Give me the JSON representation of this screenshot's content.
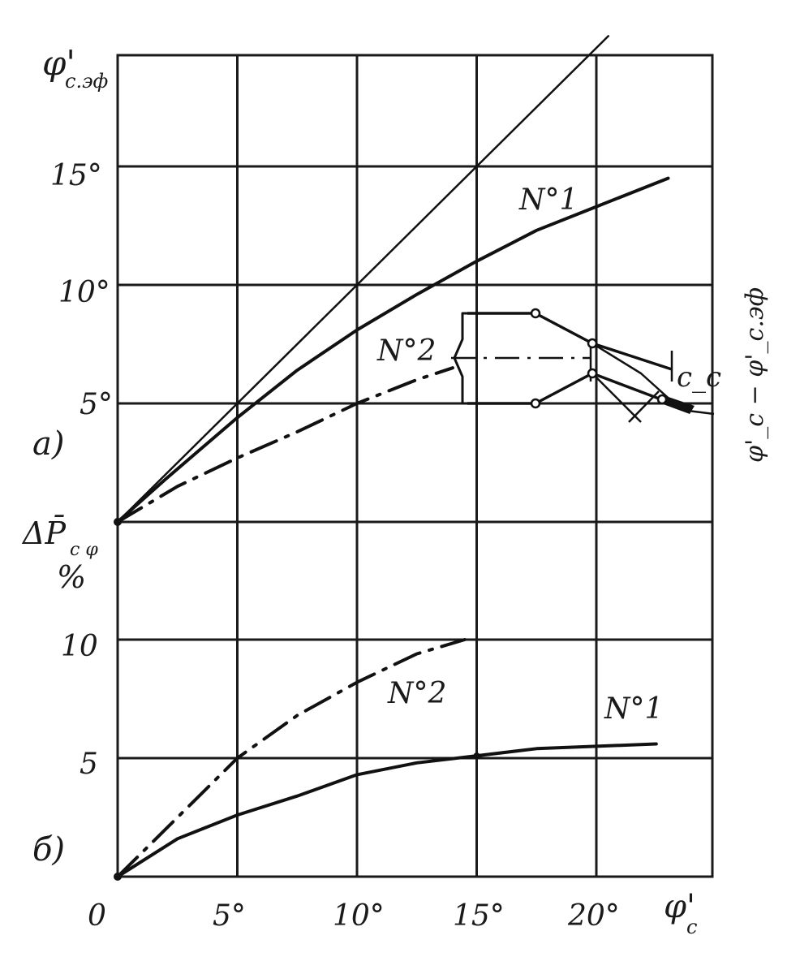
{
  "chart_data": [
    {
      "panel_label": "а)",
      "type": "line",
      "ylabel_main": "φ'",
      "ylabel_sub": "с.эф",
      "y_ticks": [
        "5°",
        "10°",
        "15°"
      ],
      "series": [
        {
          "name": "",
          "style": "thin-solid",
          "x": [
            0,
            20.5
          ],
          "y": [
            0,
            20.5
          ]
        },
        {
          "name": "N°1",
          "style": "thick-solid",
          "x": [
            0,
            2,
            5,
            7.5,
            10,
            12.5,
            15,
            17.5,
            20,
            23
          ],
          "y": [
            0,
            1.8,
            4.4,
            6.4,
            8.1,
            9.6,
            11.0,
            12.3,
            13.3,
            14.5
          ]
        },
        {
          "name": "N°2",
          "style": "dash-dot",
          "x": [
            0,
            2.5,
            5,
            7.5,
            10,
            12.5,
            14
          ],
          "y": [
            0,
            1.5,
            2.7,
            3.8,
            5.0,
            6.0,
            6.5
          ]
        }
      ],
      "inset": {
        "labels": [
          "c_c",
          "φ'_c − φ'_с.эф"
        ]
      }
    },
    {
      "panel_label": "б)",
      "type": "line",
      "ylabel_main": "ΔP̄",
      "ylabel_sub": "с φ",
      "ylabel_unit": "%",
      "y_ticks": [
        "5",
        "10"
      ],
      "x_ticks": [
        "0",
        "5°",
        "10°",
        "15°",
        "20°"
      ],
      "xlabel_main": "φ'",
      "xlabel_sub": "с",
      "series": [
        {
          "name": "N°1",
          "style": "thick-solid",
          "x": [
            0,
            2.5,
            5,
            7.5,
            10,
            12.5,
            15,
            17.5,
            20,
            22.5
          ],
          "y": [
            0,
            1.6,
            2.6,
            3.4,
            4.3,
            4.8,
            5.1,
            5.4,
            5.5,
            5.6
          ]
        },
        {
          "name": "N°2",
          "style": "dash-dot",
          "x": [
            0,
            2.5,
            5,
            7.5,
            10,
            12.5,
            14.5
          ],
          "y": [
            0,
            2.5,
            5.0,
            6.8,
            8.2,
            9.4,
            10.0
          ]
        }
      ]
    }
  ]
}
